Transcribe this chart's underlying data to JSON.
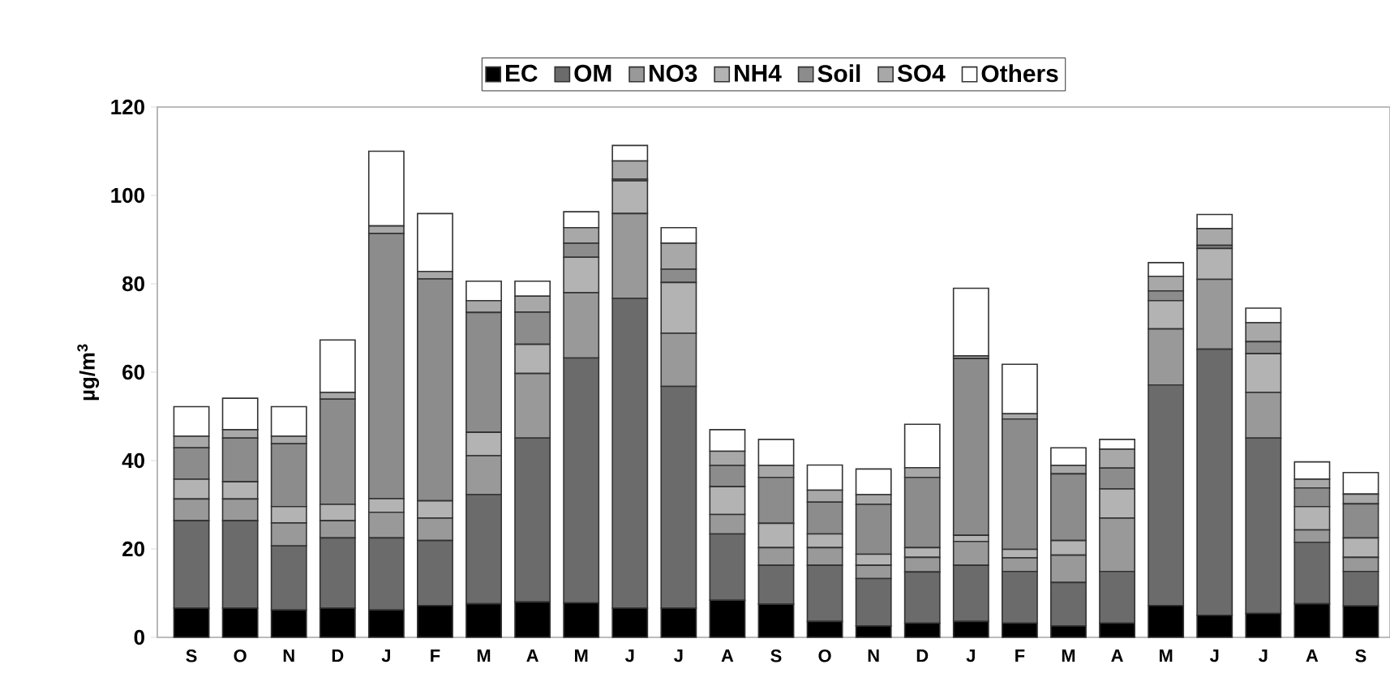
{
  "chart_data": {
    "type": "bar",
    "stacked": true,
    "ylabel": "µg/m$^{3}$",
    "categories": [
      "S",
      "O",
      "N",
      "D",
      "J",
      "F",
      "M",
      "A",
      "M",
      "J",
      "J",
      "A",
      "S",
      "O",
      "N",
      "D",
      "J",
      "F",
      "M",
      "A",
      "M",
      "J",
      "J",
      "A",
      "S"
    ],
    "ylim": [
      0,
      120
    ],
    "yticks": [
      0,
      20,
      40,
      60,
      80,
      100,
      120
    ],
    "legend": "top",
    "series": [
      {
        "name": "EC",
        "color": "#000000",
        "values": [
          6.6,
          6.6,
          6.2,
          6.6,
          6.2,
          7.2,
          7.6,
          8.0,
          7.8,
          6.6,
          6.6,
          8.4,
          7.5,
          3.6,
          2.6,
          3.2,
          3.6,
          3.2,
          2.6,
          3.2,
          7.2,
          5.0,
          5.4,
          7.6,
          7.1
        ]
      },
      {
        "name": "OM",
        "color": "#6b6b6b",
        "values": [
          19.8,
          19.8,
          14.5,
          15.9,
          16.3,
          14.7,
          24.7,
          37.1,
          55.4,
          70.1,
          50.2,
          15.0,
          8.8,
          12.7,
          10.7,
          11.6,
          12.7,
          11.7,
          9.8,
          11.7,
          49.9,
          60.2,
          39.7,
          13.9,
          7.8
        ]
      },
      {
        "name": "NO3",
        "color": "#999999",
        "values": [
          4.9,
          4.9,
          5.2,
          3.9,
          5.8,
          5.1,
          8.8,
          14.6,
          14.8,
          19.2,
          12.0,
          4.4,
          4.0,
          4.0,
          3.0,
          3.3,
          5.4,
          3.1,
          6.2,
          12.1,
          12.7,
          15.8,
          10.3,
          2.8,
          3.2
        ]
      },
      {
        "name": "NH4",
        "color": "#b3b3b3",
        "values": [
          4.5,
          3.9,
          3.7,
          3.7,
          3.1,
          3.9,
          5.3,
          6.6,
          8.0,
          7.4,
          11.5,
          6.3,
          5.5,
          3.1,
          2.5,
          2.2,
          1.4,
          1.9,
          3.3,
          6.6,
          6.4,
          7.0,
          8.8,
          5.3,
          4.4
        ]
      },
      {
        "name": "Soil",
        "color": "#8c8c8c",
        "values": [
          7.1,
          9.9,
          14.2,
          23.8,
          60.0,
          50.2,
          27.1,
          7.3,
          3.2,
          0.4,
          3.0,
          4.8,
          10.4,
          7.2,
          11.3,
          15.9,
          40.0,
          29.5,
          15.1,
          4.7,
          2.2,
          0.7,
          2.7,
          4.2,
          7.7
        ]
      },
      {
        "name": "SO4",
        "color": "#a8a8a8",
        "values": [
          2.6,
          1.9,
          1.7,
          1.5,
          1.7,
          1.7,
          2.7,
          3.6,
          3.5,
          4.1,
          5.9,
          3.2,
          2.7,
          2.7,
          2.2,
          2.2,
          0.6,
          1.2,
          1.9,
          4.3,
          3.3,
          3.8,
          4.3,
          2.0,
          2.2
        ]
      },
      {
        "name": "Others",
        "color": "#ffffff",
        "values": [
          6.7,
          7.1,
          6.7,
          11.9,
          16.9,
          13.1,
          4.4,
          3.4,
          3.6,
          3.5,
          3.5,
          4.9,
          5.9,
          5.7,
          5.8,
          9.8,
          15.3,
          11.2,
          4.0,
          2.2,
          3.1,
          3.2,
          3.3,
          3.9,
          4.9
        ]
      }
    ]
  }
}
